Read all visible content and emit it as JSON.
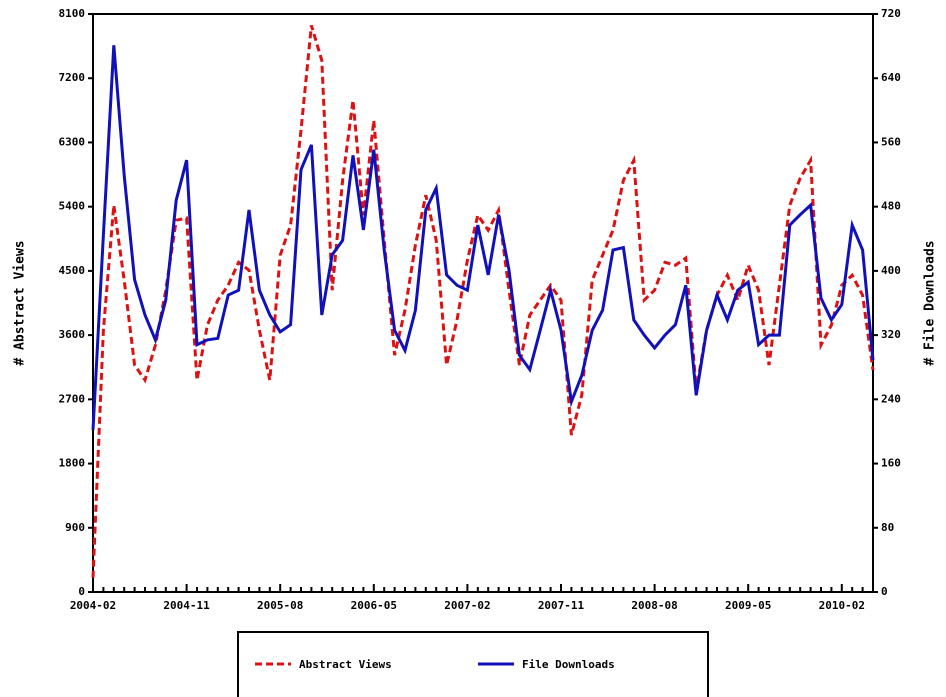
{
  "chart_data": {
    "type": "line",
    "y_label": "# Abstract Views",
    "y2_label": "# File Downloads",
    "categories": [
      "2004-02",
      null,
      null,
      null,
      null,
      null,
      null,
      null,
      null,
      "2004-11",
      null,
      null,
      null,
      null,
      null,
      null,
      null,
      null,
      "2005-08",
      null,
      null,
      null,
      null,
      null,
      null,
      null,
      null,
      "2006-05",
      null,
      null,
      null,
      null,
      null,
      null,
      null,
      null,
      "2007-02",
      null,
      null,
      null,
      null,
      null,
      null,
      null,
      null,
      "2007-11",
      null,
      null,
      null,
      null,
      null,
      null,
      null,
      null,
      "2008-08",
      null,
      null,
      null,
      null,
      null,
      null,
      null,
      null,
      "2009-05",
      null,
      null,
      null,
      null,
      null,
      null,
      null,
      null,
      "2010-02",
      null,
      null,
      null
    ],
    "series": [
      {
        "name": "Abstract Views",
        "color": "#dd1111",
        "dashed": true,
        "values": [
          200,
          3670,
          5420,
          4370,
          3180,
          2970,
          3460,
          4230,
          5210,
          5240,
          2970,
          3740,
          4090,
          4300,
          4620,
          4510,
          3670,
          2970,
          4720,
          5140,
          6470,
          7940,
          7450,
          4230,
          5770,
          6890,
          5280,
          6610,
          4930,
          3320,
          3950,
          4860,
          5560,
          4930,
          3180,
          3810,
          4650,
          5280,
          5070,
          5350,
          4230,
          3180,
          3880,
          4090,
          4300,
          4090,
          2200,
          2760,
          4370,
          4720,
          5070,
          5770,
          6050,
          4090,
          4230,
          4620,
          4580,
          4680,
          2830,
          3670,
          4160,
          4440,
          4090,
          4580,
          4230,
          3180,
          4300,
          5420,
          5800,
          6050,
          3460,
          3740,
          4300,
          4440,
          4160,
          3110
        ]
      },
      {
        "name": "File Downloads",
        "color": "#1111bb",
        "axis": "y2",
        "values": [
          202,
          445,
          681,
          519,
          389,
          345,
          314,
          364,
          488,
          538,
          308,
          314,
          316,
          370,
          376,
          476,
          376,
          345,
          324,
          333,
          526,
          557,
          345,
          420,
          438,
          544,
          451,
          551,
          426,
          326,
          301,
          351,
          476,
          503,
          395,
          382,
          376,
          457,
          395,
          470,
          401,
          295,
          277,
          326,
          376,
          326,
          237,
          270,
          326,
          351,
          426,
          429,
          339,
          320,
          304,
          320,
          333,
          382,
          245,
          326,
          370,
          339,
          376,
          386,
          308,
          320,
          320,
          457,
          470,
          482,
          366,
          339,
          358,
          457,
          426,
          289
        ]
      }
    ],
    "ylim": [
      0,
      8100
    ],
    "yticks": [
      0,
      900,
      1800,
      2700,
      3600,
      4500,
      5400,
      6300,
      7200,
      8100
    ],
    "y2lim": [
      0,
      720
    ],
    "y2ticks": [
      0,
      80,
      160,
      240,
      320,
      400,
      480,
      560,
      640,
      720
    ]
  }
}
